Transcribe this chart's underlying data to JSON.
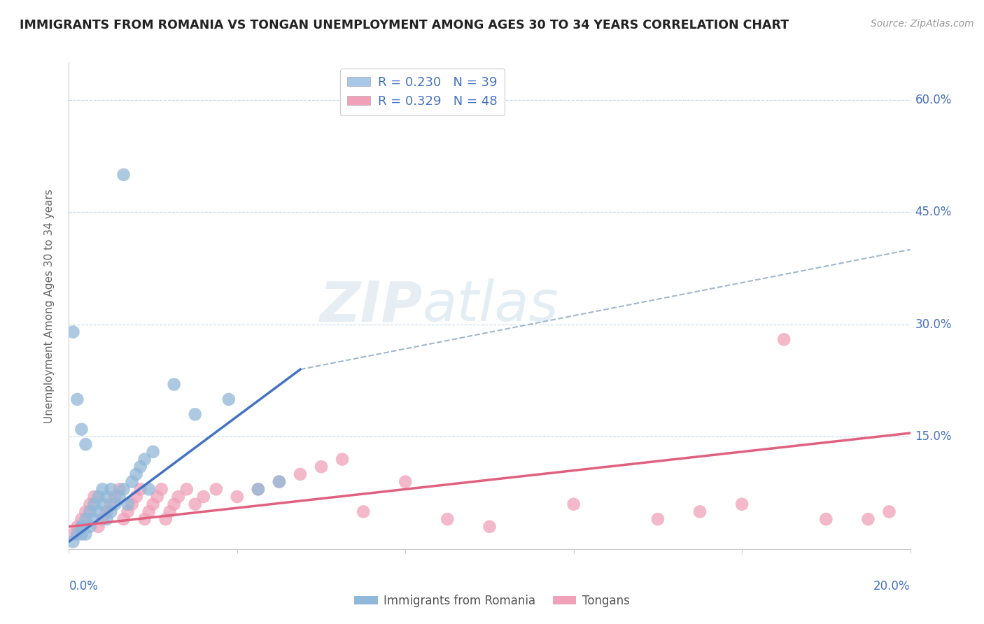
{
  "title": "IMMIGRANTS FROM ROMANIA VS TONGAN UNEMPLOYMENT AMONG AGES 30 TO 34 YEARS CORRELATION CHART",
  "source": "Source: ZipAtlas.com",
  "ylabel": "Unemployment Among Ages 30 to 34 years",
  "xlim": [
    0.0,
    0.2
  ],
  "ylim": [
    0.0,
    0.65
  ],
  "y_ticks": [
    0.0,
    0.15,
    0.3,
    0.45,
    0.6
  ],
  "y_tick_labels": [
    "",
    "15.0%",
    "30.0%",
    "45.0%",
    "60.0%"
  ],
  "x_tick_labels": [
    "0.0%",
    "20.0%"
  ],
  "legend_entries": [
    {
      "label": "R = 0.230   N = 39",
      "color": "#a8c8e8"
    },
    {
      "label": "R = 0.329   N = 48",
      "color": "#f0a0b8"
    }
  ],
  "legend_bottom": [
    "Immigrants from Romania",
    "Tongans"
  ],
  "romania_color": "#90b8d8",
  "tongan_color": "#f0a0b8",
  "romania_line_color": "#4472c4",
  "tongan_line_color": "#e06080",
  "dashed_line_color": "#a0b8d0",
  "grid_color": "#c8d8e8",
  "background_color": "#ffffff",
  "watermark_zip": "ZIP",
  "watermark_atlas": "atlas",
  "romania_scatter_x": [
    0.013,
    0.003,
    0.003,
    0.004,
    0.005,
    0.006,
    0.007,
    0.008,
    0.009,
    0.01,
    0.011,
    0.012,
    0.013,
    0.014,
    0.015,
    0.016,
    0.017,
    0.018,
    0.019,
    0.02,
    0.001,
    0.002,
    0.003,
    0.004,
    0.005,
    0.006,
    0.007,
    0.008,
    0.009,
    0.01,
    0.001,
    0.002,
    0.003,
    0.004,
    0.05,
    0.025,
    0.03,
    0.038,
    0.045
  ],
  "romania_scatter_y": [
    0.5,
    0.02,
    0.03,
    0.04,
    0.05,
    0.06,
    0.07,
    0.08,
    0.04,
    0.05,
    0.06,
    0.07,
    0.08,
    0.06,
    0.09,
    0.1,
    0.11,
    0.12,
    0.08,
    0.13,
    0.01,
    0.02,
    0.03,
    0.02,
    0.03,
    0.04,
    0.05,
    0.06,
    0.07,
    0.08,
    0.29,
    0.2,
    0.16,
    0.14,
    0.09,
    0.22,
    0.18,
    0.2,
    0.08
  ],
  "tongan_scatter_x": [
    0.001,
    0.002,
    0.003,
    0.004,
    0.005,
    0.006,
    0.007,
    0.008,
    0.009,
    0.01,
    0.011,
    0.012,
    0.013,
    0.014,
    0.015,
    0.016,
    0.017,
    0.018,
    0.019,
    0.02,
    0.021,
    0.022,
    0.023,
    0.024,
    0.025,
    0.026,
    0.028,
    0.03,
    0.032,
    0.035,
    0.04,
    0.045,
    0.05,
    0.055,
    0.06,
    0.065,
    0.07,
    0.08,
    0.09,
    0.1,
    0.12,
    0.14,
    0.15,
    0.16,
    0.17,
    0.18,
    0.19,
    0.195
  ],
  "tongan_scatter_y": [
    0.02,
    0.03,
    0.04,
    0.05,
    0.06,
    0.07,
    0.03,
    0.04,
    0.05,
    0.06,
    0.07,
    0.08,
    0.04,
    0.05,
    0.06,
    0.07,
    0.08,
    0.04,
    0.05,
    0.06,
    0.07,
    0.08,
    0.04,
    0.05,
    0.06,
    0.07,
    0.08,
    0.06,
    0.07,
    0.08,
    0.07,
    0.08,
    0.09,
    0.1,
    0.11,
    0.12,
    0.05,
    0.09,
    0.04,
    0.03,
    0.06,
    0.04,
    0.05,
    0.06,
    0.28,
    0.04,
    0.04,
    0.05
  ],
  "romania_line_x": [
    0.0,
    0.055
  ],
  "romania_line_y": [
    0.01,
    0.24
  ],
  "tongan_line_x": [
    0.0,
    0.2
  ],
  "tongan_line_y": [
    0.03,
    0.155
  ],
  "dashed_line_x": [
    0.055,
    0.2
  ],
  "dashed_line_y": [
    0.24,
    0.4
  ]
}
